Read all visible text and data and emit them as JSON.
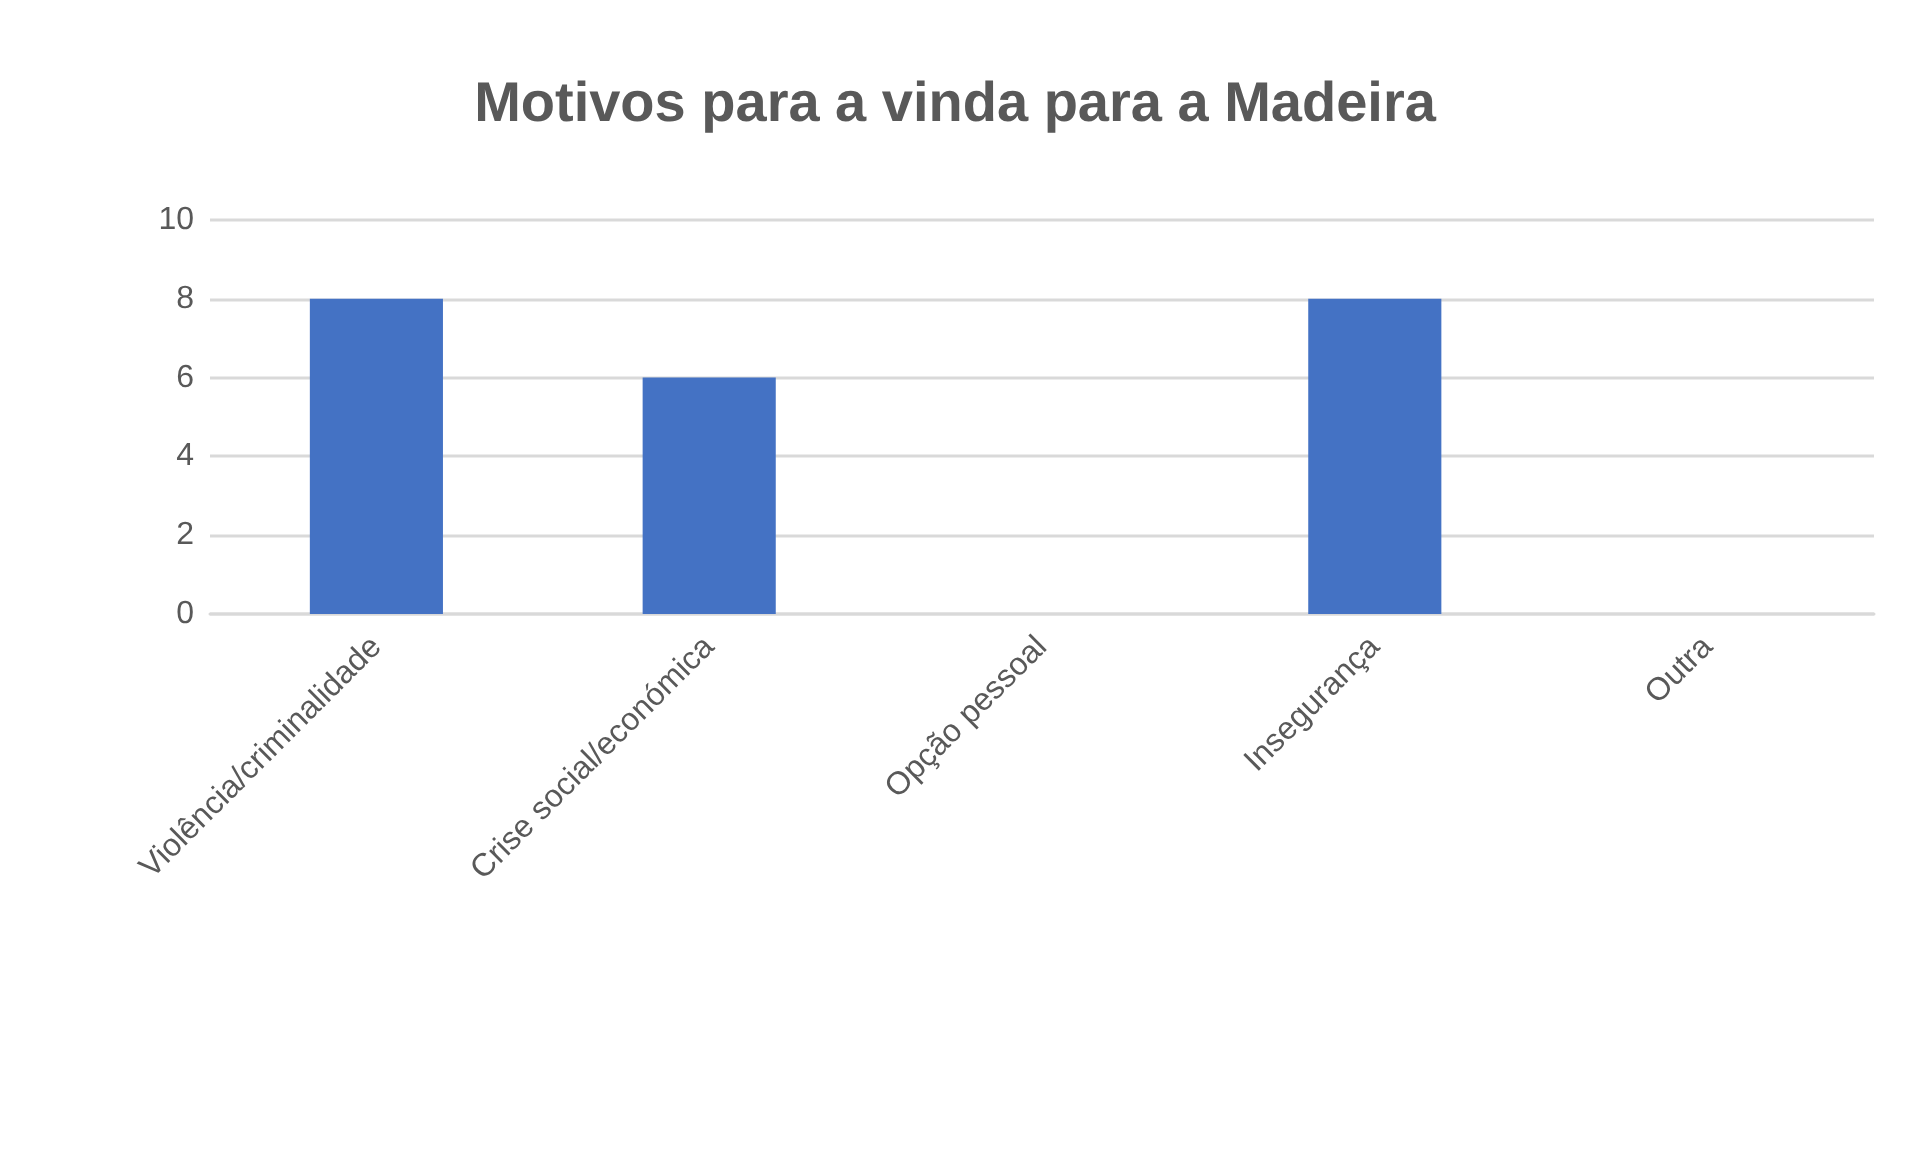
{
  "chart_data": {
    "type": "bar",
    "title": "Motivos para a vinda para a Madeira",
    "categories": [
      "Violência/criminalidade",
      "Crise social/económica",
      "Opção pessoal",
      "Insegurança",
      "Outra"
    ],
    "values": [
      8,
      6,
      0,
      8,
      0
    ],
    "color": "#4472c4",
    "ylim": [
      0,
      10
    ],
    "yticks": [
      0,
      2,
      4,
      6,
      8,
      10
    ],
    "grid": "y"
  }
}
